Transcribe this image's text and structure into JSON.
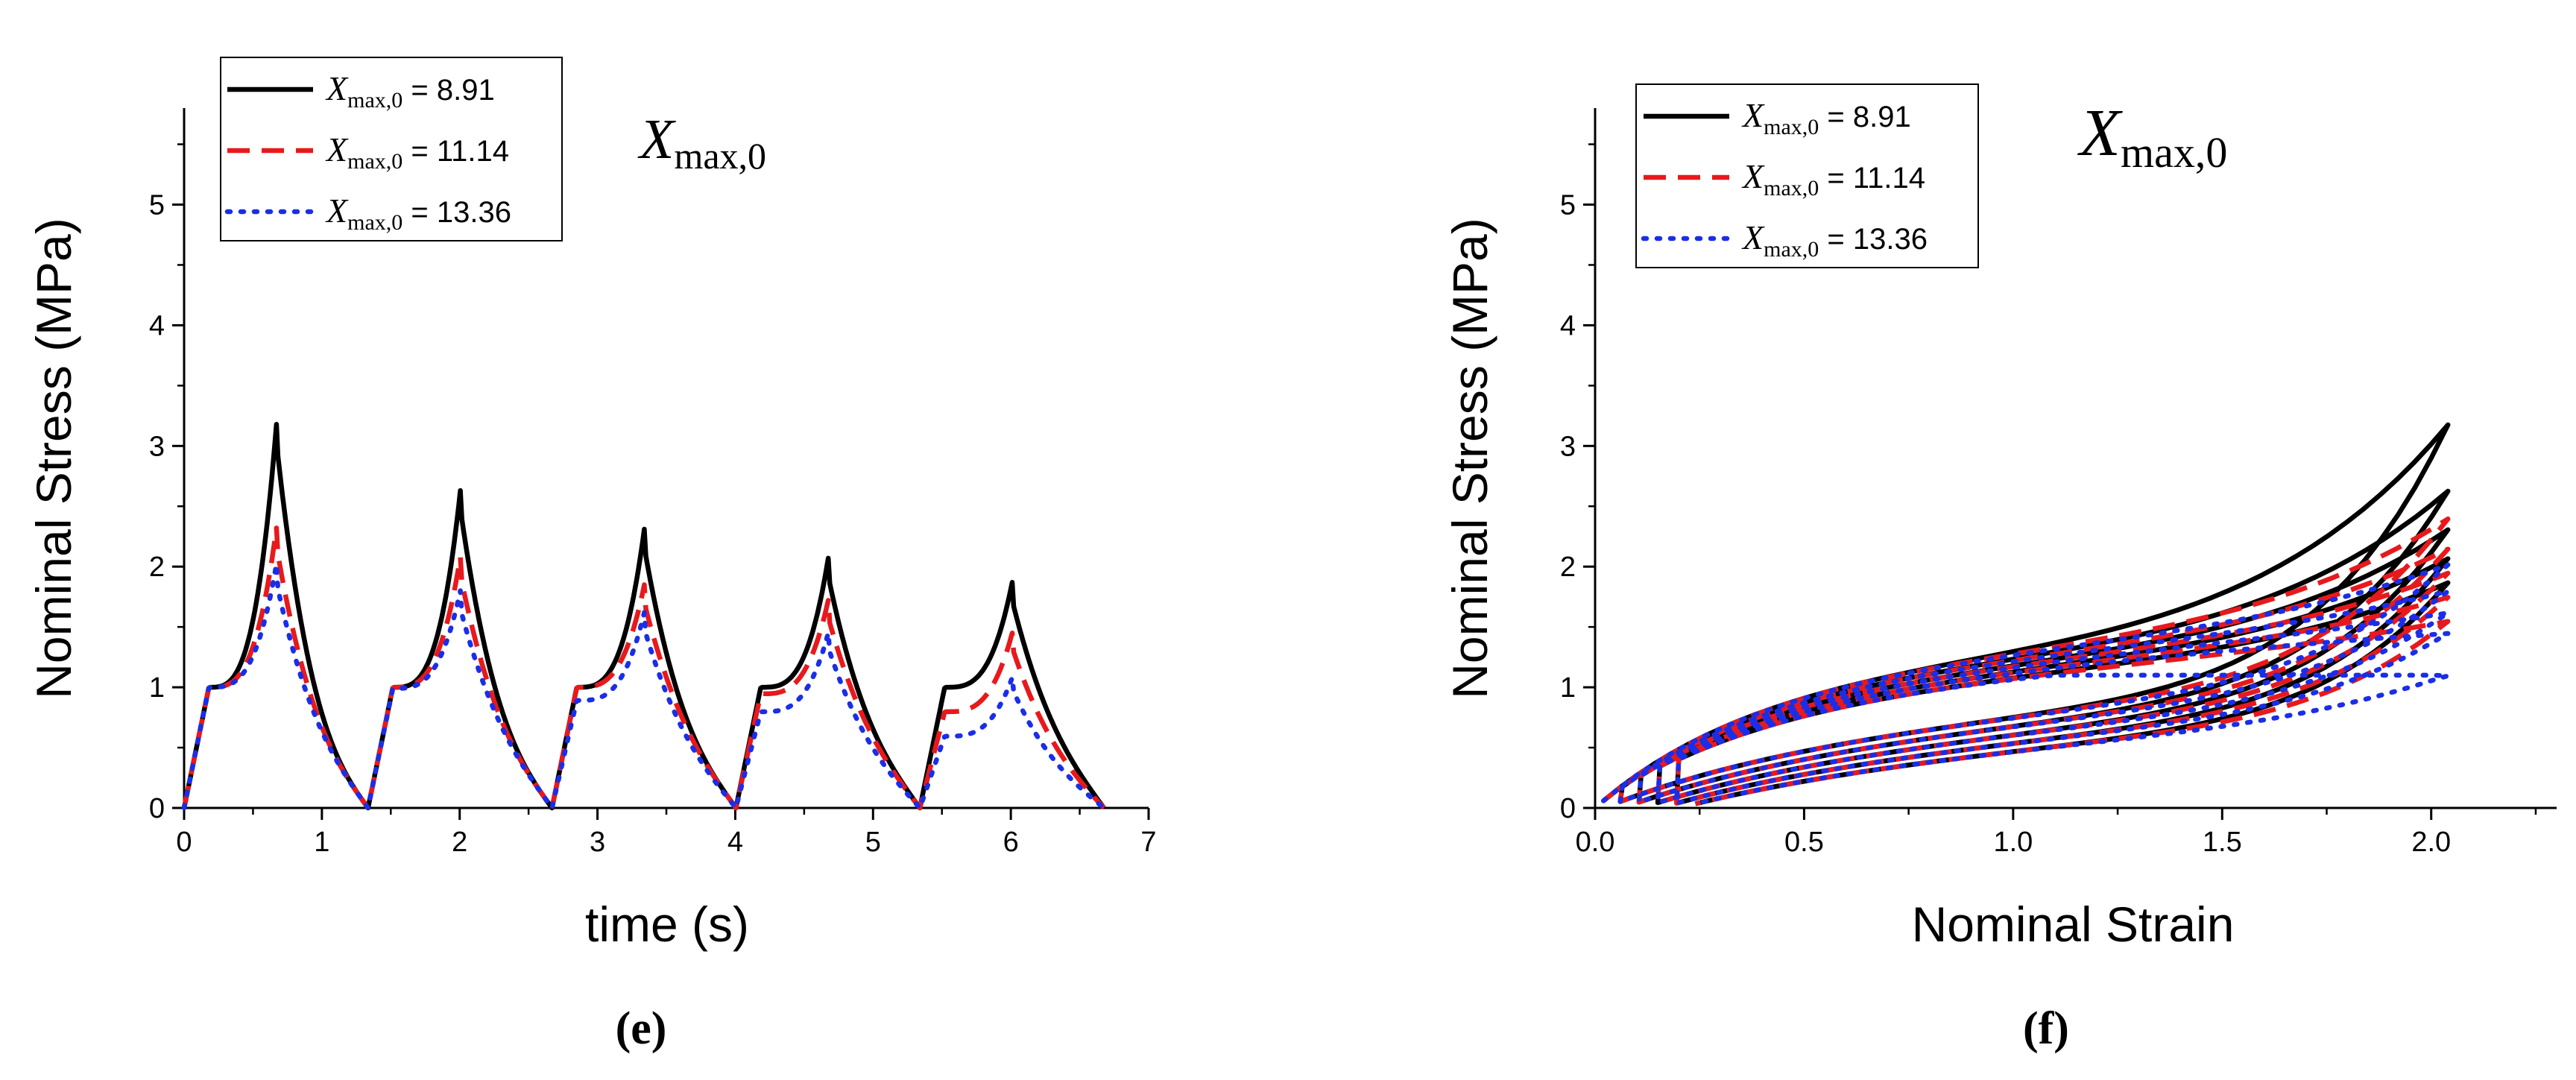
{
  "chart_data": [
    {
      "panel": "(e)",
      "type": "line",
      "xlabel": "time (s)",
      "ylabel": "Nominal Stress (MPa)",
      "xlim": [
        0,
        7
      ],
      "ylim": [
        0,
        5.8
      ],
      "xticks": [
        "0",
        "1",
        "2",
        "3",
        "4",
        "5",
        "6",
        "7"
      ],
      "yticks": [
        "0",
        "1",
        "2",
        "3",
        "4",
        "5"
      ],
      "annotation": "X",
      "annotation_sub": "max,0",
      "legend_position": "top-left",
      "series": [
        {
          "name": "X max,0 = 8.91",
          "name_sym": "X",
          "name_sub": "max,0",
          "name_val": " =  8.91",
          "color": "#000000",
          "dash": "solid",
          "peaks": [
            3.18,
            2.63,
            2.31,
            2.07,
            1.87
          ]
        },
        {
          "name": "X max,0 = 11.14",
          "name_sym": "X",
          "name_sub": "max,0",
          "name_val": " = 11.14",
          "color": "#e8191c",
          "dash": "dashed",
          "peaks": [
            2.32,
            2.08,
            1.85,
            1.72,
            1.45
          ]
        },
        {
          "name": "X max,0 = 13.36",
          "name_sym": "X",
          "name_sub": "max,0",
          "name_val": " = 13.36",
          "color": "#1a2ee8",
          "dash": "dotted",
          "peaks": [
            2.02,
            1.8,
            1.62,
            1.45,
            1.08
          ]
        }
      ],
      "cycle_period": 1.335,
      "peak_time_in_cycle": 0.67
    },
    {
      "panel": "(f)",
      "type": "line",
      "xlabel": "Nominal Strain",
      "ylabel": "Nominal Stress (MPa)",
      "xlim": [
        0,
        2.3
      ],
      "ylim": [
        0,
        5.8
      ],
      "xticks": [
        "0.0",
        "0.5",
        "1.0",
        "1.5",
        "2.0"
      ],
      "yticks": [
        "0",
        "1",
        "2",
        "3",
        "4",
        "5"
      ],
      "annotation": "X",
      "annotation_sub": "max,0",
      "legend_position": "top-left",
      "max_strain": 2.04,
      "series": [
        {
          "name": "X max,0 = 8.91",
          "name_sym": "X",
          "name_sub": "max,0",
          "name_val": " =  8.91",
          "color": "#000000",
          "dash": "solid",
          "peaks": [
            3.18,
            2.63,
            2.31,
            2.07,
            1.87
          ]
        },
        {
          "name": "X max,0 = 11.14",
          "name_sym": "X",
          "name_sub": "max,0",
          "name_val": " = 11.14",
          "color": "#e8191c",
          "dash": "dashed",
          "peaks": [
            2.4,
            2.15,
            1.95,
            1.75,
            1.55
          ]
        },
        {
          "name": "X max,0 = 13.36",
          "name_sym": "X",
          "name_sub": "max,0",
          "name_val": " = 13.36",
          "color": "#1a2ee8",
          "dash": "dotted",
          "peaks": [
            2.02,
            1.8,
            1.62,
            1.45,
            1.1
          ]
        }
      ]
    }
  ]
}
